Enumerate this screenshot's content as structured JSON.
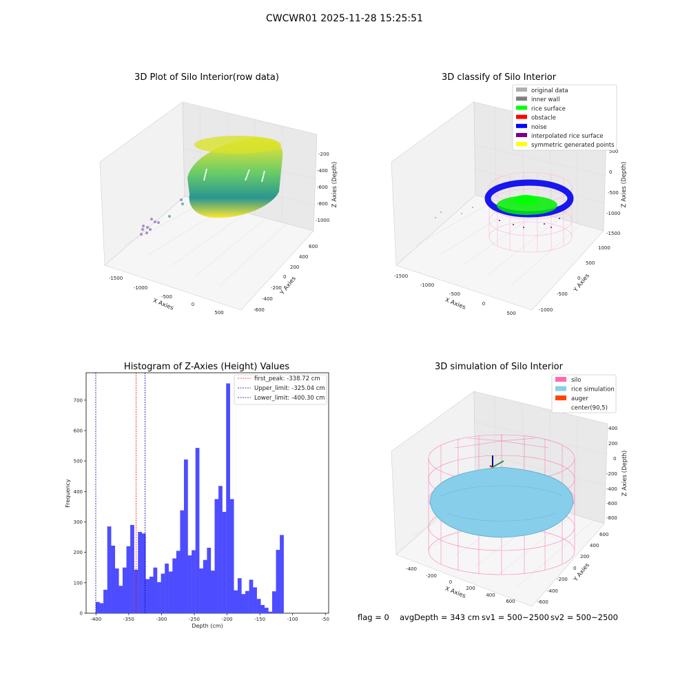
{
  "figure": {
    "suptitle": "CWCWR01 2025-11-28 15:25:51",
    "footer": {
      "flag": "flag = 0",
      "avg_depth": "avgDepth = 343 cm",
      "sv1": "sv1 = 500~2500",
      "sv2": "sv2 = 500~2500"
    }
  },
  "chart_data": [
    {
      "type": "scatter",
      "title": "3D Plot of Silo Interior(row data)",
      "xlabel": "X Axies",
      "ylabel": "Y Axies",
      "zlabel": "Z Axies (Depth)",
      "x_ticks": [
        "-1500",
        "-1000",
        "-500",
        "0",
        "500"
      ],
      "y_ticks": [
        "-600",
        "-400",
        "-200",
        "0",
        "200",
        "400",
        "600"
      ],
      "z_ticks": [
        "-200",
        "-400",
        "-600",
        "-800",
        "-1000"
      ],
      "xlim": [
        -1700,
        600
      ],
      "ylim": [
        -650,
        650
      ],
      "zlim": [
        -1100,
        -100
      ],
      "colormap": [
        "#440154",
        "#31688e",
        "#35b779",
        "#fde725"
      ]
    },
    {
      "type": "scatter",
      "title": "3D classify of Silo Interior",
      "xlabel": "X Axies",
      "ylabel": "Y Axies",
      "zlabel": "Z Axies (Depth)",
      "x_ticks": [
        "-1500",
        "-1000",
        "-500",
        "0",
        "500"
      ],
      "y_ticks": [
        "-1000",
        "-500",
        "0",
        "500",
        "1000"
      ],
      "z_ticks": [
        "500",
        "0",
        "-500",
        "-1000",
        "-1500"
      ],
      "legend": [
        {
          "label": "original data",
          "color": "#b0b0b0"
        },
        {
          "label": "inner wall",
          "color": "#808080"
        },
        {
          "label": "rice surface",
          "color": "#00ff00"
        },
        {
          "label": "obstacle",
          "color": "#ff0000"
        },
        {
          "label": "noise",
          "color": "#0000ff"
        },
        {
          "label": "interpolated rice surface",
          "color": "#800080"
        },
        {
          "label": "symmetric generated points",
          "color": "#ffff00"
        }
      ]
    },
    {
      "type": "bar",
      "title": "Histogram of Z-Axies (Height) Values",
      "xlabel": "Depth (cm)",
      "ylabel": "Frequency",
      "xlim": [
        -415,
        -45
      ],
      "ylim": [
        0,
        790
      ],
      "x_ticks": [
        -400,
        -350,
        -300,
        -250,
        -200,
        -150,
        -100,
        -50
      ],
      "y_ticks": [
        0,
        100,
        200,
        300,
        400,
        500,
        600,
        700
      ],
      "bar_color": "#4d4dff",
      "bin_start": -400.3,
      "bin_width": 5.85,
      "values": [
        37,
        33,
        77,
        285,
        222,
        147,
        90,
        150,
        220,
        290,
        143,
        267,
        262,
        112,
        120,
        150,
        102,
        130,
        163,
        137,
        180,
        205,
        338,
        505,
        190,
        207,
        543,
        147,
        175,
        215,
        140,
        375,
        418,
        333,
        755,
        375,
        75,
        115,
        63,
        73,
        110,
        85,
        47,
        27,
        18,
        5,
        72,
        208,
        257
      ],
      "vlines": [
        {
          "label": "first_peak: -338.72 cm",
          "x": -338.72,
          "color": "#ff0000"
        },
        {
          "label": "Upper_limit: -325.04 cm",
          "x": -325.04,
          "color": "#0000aa"
        },
        {
          "label": "Lower_limit: -400.30 cm",
          "x": -400.3,
          "color": "#0000aa"
        }
      ]
    },
    {
      "type": "scatter",
      "title": "3D simulation of Silo Interior",
      "xlabel": "X Axies",
      "ylabel": "Y Axies",
      "zlabel": "Z Axies (Depth)",
      "x_ticks": [
        "-400",
        "-200",
        "0",
        "200",
        "400",
        "600"
      ],
      "y_ticks": [
        "-600",
        "-400",
        "-200",
        "0",
        "200",
        "400",
        "600"
      ],
      "z_ticks": [
        "400",
        "200",
        "0",
        "-200",
        "-400",
        "-600",
        "-800"
      ],
      "legend": [
        {
          "label": "silo",
          "color": "#ff69b4"
        },
        {
          "label": "rice simulation",
          "color": "#87ceeb"
        },
        {
          "label": "auger",
          "color": "#ff4500"
        },
        {
          "label": "center(90,5)",
          "color": "#ffffff"
        }
      ]
    }
  ]
}
